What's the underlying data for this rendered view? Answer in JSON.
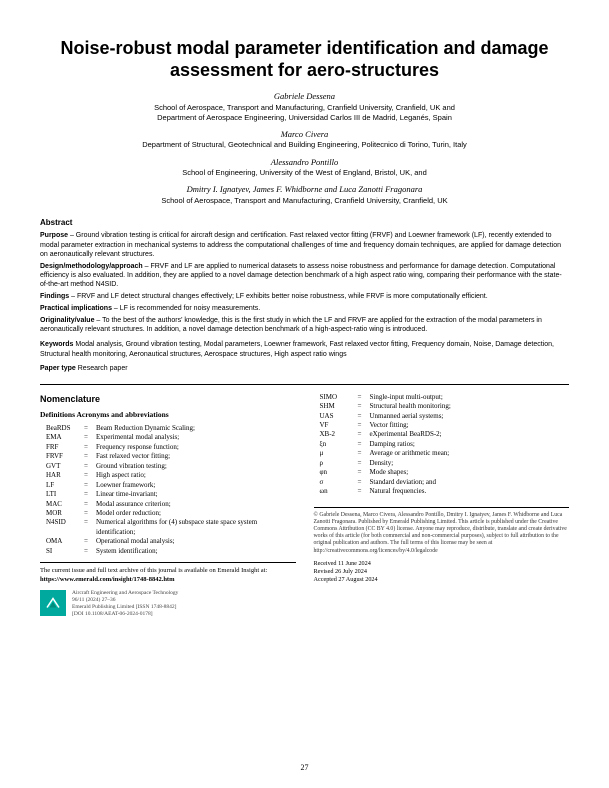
{
  "title": "Noise-robust modal parameter identification and damage assessment for aero-structures",
  "authors": [
    {
      "name": "Gabriele Dessena",
      "aff": "School of Aerospace, Transport and Manufacturing, Cranfield University, Cranfield, UK and\nDepartment of Aerospace Engineering, Universidad Carlos III de Madrid, Leganés, Spain"
    },
    {
      "name": "Marco Civera",
      "aff": "Department of Structural, Geotechnical and Building Engineering, Politecnico di Torino, Turin, Italy"
    },
    {
      "name": "Alessandro Pontillo",
      "aff": "School of Engineering, University of the West of England, Bristol, UK, and"
    },
    {
      "name": "Dmitry I. Ignatyev, James F. Whidborne and Luca Zanotti Fragonara",
      "aff": "School of Aerospace, Transport and Manufacturing, Cranfield University, Cranfield, UK"
    }
  ],
  "abstract_label": "Abstract",
  "abstract": [
    {
      "lead": "Purpose",
      "body": " – Ground vibration testing is critical for aircraft design and certification. Fast relaxed vector fitting (FRVF) and Loewner framework (LF), recently extended to modal parameter extraction in mechanical systems to address the computational challenges of time and frequency domain techniques, are applied for damage detection on aeronautically relevant structures."
    },
    {
      "lead": "Design/methodology/approach",
      "body": " – FRVF and LF are applied to numerical datasets to assess noise robustness and performance for damage detection. Computational efficiency is also evaluated. In addition, they are applied to a novel damage detection benchmark of a high aspect ratio wing, comparing their performance with the state-of-the-art method N4SID."
    },
    {
      "lead": "Findings",
      "body": " – FRVF and LF detect structural changes effectively; LF exhibits better noise robustness, while FRVF is more computationally efficient."
    },
    {
      "lead": "Practical implications",
      "body": " – LF is recommended for noisy measurements."
    },
    {
      "lead": "Originality/value",
      "body": " – To the best of the authors' knowledge, this is the first study in which the LF and FRVF are applied for the extraction of the modal parameters in aeronautically relevant structures. In addition, a novel damage detection benchmark of a high-aspect-ratio wing is introduced."
    }
  ],
  "keywords_lead": "Keywords",
  "keywords_body": " Modal analysis, Ground vibration testing, Modal parameters, Loewner framework, Fast relaxed vector fitting, Frequency domain, Noise, Damage detection, Structural health monitoring, Aeronautical structures, Aerospace structures, High aspect ratio wings",
  "paper_type_lead": "Paper type",
  "paper_type_body": " Research paper",
  "nomenclature_heading": "Nomenclature",
  "nomenclature_sub": "Definitions Acronyms and abbreviations",
  "nomen_left": [
    {
      "abbr": "BeaRDS",
      "def": "Beam Reduction Dynamic Scaling;"
    },
    {
      "abbr": "EMA",
      "def": "Experimental modal analysis;"
    },
    {
      "abbr": "FRF",
      "def": "Frequency response function;"
    },
    {
      "abbr": "FRVF",
      "def": "Fast relaxed vector fitting;"
    },
    {
      "abbr": "GVT",
      "def": "Ground vibration testing;"
    },
    {
      "abbr": "HAR",
      "def": "High aspect ratio;"
    },
    {
      "abbr": "LF",
      "def": "Loewner framework;"
    },
    {
      "abbr": "LTI",
      "def": "Linear time-invariant;"
    },
    {
      "abbr": "MAC",
      "def": "Modal assurance criterion;"
    },
    {
      "abbr": "MOR",
      "def": "Model order reduction;"
    },
    {
      "abbr": "N4SID",
      "def": "Numerical algorithms for (4) subspace state space system identification;"
    },
    {
      "abbr": "OMA",
      "def": "Operational modal analysis;"
    },
    {
      "abbr": "SI",
      "def": "System identification;"
    }
  ],
  "nomen_right": [
    {
      "abbr": "SIMO",
      "def": "Single-input multi-output;"
    },
    {
      "abbr": "SHM",
      "def": "Structural health monitoring;"
    },
    {
      "abbr": "UAS",
      "def": "Unmanned aerial systems;"
    },
    {
      "abbr": "VF",
      "def": "Vector fitting;"
    },
    {
      "abbr": "XB-2",
      "def": "eXperimental BeaRDS-2;"
    },
    {
      "abbr": "ξn",
      "def": "Damping ratios;"
    },
    {
      "abbr": "μ",
      "def": "Average or arithmetic mean;"
    },
    {
      "abbr": "ρ",
      "def": "Density;"
    },
    {
      "abbr": "φn",
      "def": "Mode shapes;"
    },
    {
      "abbr": "σ",
      "def": "Standard deviation; and"
    },
    {
      "abbr": "ωn",
      "def": "Natural frequencies."
    }
  ],
  "archive_text": "The current issue and full text archive of this journal is available on Emerald Insight at: ",
  "archive_url": "https://www.emerald.com/insight/1748-8842.htm",
  "journal_meta": {
    "l1": "Aircraft Engineering and Aerospace Technology",
    "l2": "96/11 (2024) 27–36",
    "l3": "Emerald Publishing Limited [ISSN 1748-8842]",
    "l4": "[DOI 10.1108/AEAT-06-2024-0178]"
  },
  "copyright": "© Gabriele Dessena, Marco Civera, Alessandro Pontillo, Dmitry I. Ignatyev, James F. Whidborne and Luca Zanotti Fragonara. Published by Emerald Publishing Limited. This article is published under the Creative Commons Attribution (CC BY 4.0) license. Anyone may reproduce, distribute, translate and create derivative works of this article (for both commercial and non-commercial purposes), subject to full attribution to the original publication and authors. The full terms of this license may be seen at http://creativecommons.org/licences/by/4.0/legalcode",
  "dates": {
    "received": "Received 11 June 2024",
    "revised": "Revised 26 July 2024",
    "accepted": "Accepted 27 August 2024"
  },
  "page_number": "27"
}
